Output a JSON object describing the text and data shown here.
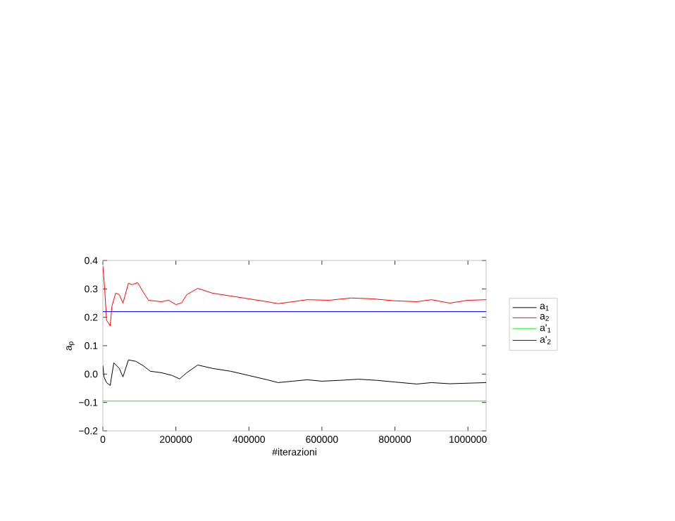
{
  "chart_data": {
    "type": "line",
    "xlabel": "#iterazioni",
    "ylabel": "a$_{p}$",
    "xlim": [
      0,
      1050000
    ],
    "ylim": [
      -0.2,
      0.4
    ],
    "xticks": [
      0,
      200000,
      400000,
      600000,
      800000,
      1000000
    ],
    "yticks": [
      {
        "value": -0.2,
        "label": "−0.2"
      },
      {
        "value": -0.1,
        "label": "−0.1"
      },
      {
        "value": 0,
        "label": "0.0"
      },
      {
        "value": 0.1,
        "label": "0.1"
      },
      {
        "value": 0.2,
        "label": "0.2"
      },
      {
        "value": 0.3,
        "label": "0.3"
      },
      {
        "value": 0.4,
        "label": "0.4"
      }
    ],
    "grid": false,
    "legend": "right",
    "marker": "none",
    "line_style": "solid",
    "series": [
      {
        "name": "a$_{1}$",
        "color": "#000000",
        "x": [
          0,
          3000,
          10000,
          20000,
          30000,
          45000,
          55000,
          70000,
          90000,
          110000,
          130000,
          160000,
          190000,
          210000,
          230000,
          260000,
          300000,
          350000,
          400000,
          450000,
          480000,
          520000,
          560000,
          600000,
          650000,
          700000,
          750000,
          800000,
          860000,
          900000,
          950000,
          1000000,
          1050000
        ],
        "values": [
          0.03,
          -0.01,
          -0.03,
          -0.04,
          0.04,
          0.02,
          -0.01,
          0.05,
          0.045,
          0.03,
          0.01,
          0.005,
          -0.005,
          -0.017,
          0.005,
          0.032,
          0.02,
          0.01,
          -0.005,
          -0.02,
          -0.03,
          -0.025,
          -0.02,
          -0.025,
          -0.022,
          -0.018,
          -0.022,
          -0.028,
          -0.035,
          -0.03,
          -0.034,
          -0.032,
          -0.03
        ]
      },
      {
        "name": "a$_{2}$",
        "color": "#ff0000",
        "x": [
          0,
          5000,
          10000,
          15000,
          20000,
          25000,
          35000,
          45000,
          55000,
          70000,
          80000,
          95000,
          110000,
          125000,
          160000,
          180000,
          200000,
          215000,
          230000,
          260000,
          300000,
          350000,
          400000,
          450000,
          480000,
          520000,
          560000,
          620000,
          680000,
          740000,
          800000,
          860000,
          900000,
          950000,
          1000000,
          1050000
        ],
        "values": [
          0.38,
          0.3,
          0.19,
          0.18,
          0.17,
          0.24,
          0.285,
          0.28,
          0.25,
          0.32,
          0.315,
          0.322,
          0.29,
          0.26,
          0.255,
          0.26,
          0.245,
          0.25,
          0.28,
          0.302,
          0.285,
          0.275,
          0.265,
          0.255,
          0.248,
          0.255,
          0.262,
          0.26,
          0.268,
          0.265,
          0.258,
          0.255,
          0.262,
          0.25,
          0.26,
          0.262
        ]
      },
      {
        "name": "a'$_{1}$",
        "color": "#00ff00",
        "x": [
          0,
          1050000
        ],
        "values": [
          -0.095,
          -0.095
        ]
      },
      {
        "name": "a'$_{2}$",
        "color": "#0000ff",
        "x": [
          0,
          1050000
        ],
        "values": [
          0.22,
          0.22
        ]
      }
    ]
  }
}
